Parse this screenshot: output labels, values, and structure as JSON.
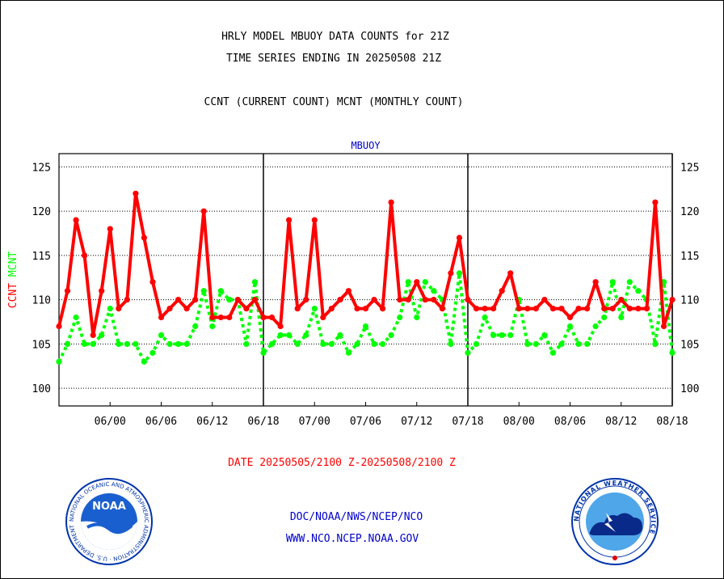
{
  "title_lines": [
    "HRLY MODEL MBUOY DATA COUNTS for 21Z",
    "TIME SERIES ENDING IN 20250508 21Z",
    "CCNT (CURRENT COUNT) MCNT (MONTHLY COUNT)"
  ],
  "date_range": "DATE 20250505/2100 Z-20250508/2100 Z",
  "footer_lines": [
    "DOC/NOAA/NWS/NCEP/NCO",
    "WWW.NCO.NCEP.NOAA.GOV"
  ],
  "logos": {
    "left": {
      "icon": "noaa-logo",
      "text": "NOAA",
      "ring_text": "NATIONAL OCEANIC AND ATMOSPHERIC ADMINISTRATION · U.S. DEPARTMENT OF COMMERCE"
    },
    "right": {
      "icon": "nws-logo",
      "ring_text": "NATIONAL WEATHER SERVICE"
    }
  },
  "colors": {
    "ccnt": "#ff0000",
    "mcnt": "#00ff00",
    "plot_title": "#0000cc",
    "footer": "#0000cc",
    "date": "#ff0000"
  },
  "chart_data": {
    "type": "line",
    "plot_title": "MBUOY",
    "ylabel_parts": [
      {
        "text": "CCNT",
        "color": "#ff0000"
      },
      {
        "text": "MCNT",
        "color": "#00ff00"
      }
    ],
    "ylim": [
      98,
      126.5
    ],
    "yticks": [
      100,
      105,
      110,
      115,
      120,
      125
    ],
    "grid": "horizontal dotted",
    "x_tick_labels": [
      "06/00",
      "06/06",
      "06/12",
      "06/18",
      "07/00",
      "07/06",
      "07/12",
      "07/18",
      "08/00",
      "08/06",
      "08/12",
      "08/18"
    ],
    "x_tick_hours": [
      27,
      33,
      39,
      45,
      51,
      57,
      63,
      69,
      75,
      81,
      87,
      93
    ],
    "x_range_hours": [
      21,
      93
    ],
    "day_boundaries_hours": [
      45,
      69,
      93
    ],
    "x_start": "20250505 21Z",
    "series": [
      {
        "name": "CCNT",
        "color": "#ff0000",
        "style": "solid",
        "values": [
          107,
          111,
          119,
          115,
          106,
          111,
          118,
          109,
          110,
          122,
          117,
          112,
          108,
          109,
          110,
          109,
          110,
          120,
          108,
          108,
          108,
          110,
          109,
          110,
          108,
          108,
          107,
          119,
          109,
          110,
          119,
          108,
          109,
          110,
          111,
          109,
          109,
          110,
          109,
          121,
          110,
          110,
          112,
          110,
          110,
          109,
          113,
          117,
          110,
          109,
          109,
          109,
          111,
          113,
          109,
          109,
          109,
          110,
          109,
          109,
          108,
          109,
          109,
          112,
          109,
          109,
          110,
          109,
          109,
          109,
          121,
          107,
          110
        ]
      },
      {
        "name": "MCNT",
        "color": "#00ff00",
        "style": "dotted",
        "values": [
          103,
          105,
          108,
          105,
          105,
          106,
          109,
          105,
          105,
          105,
          103,
          104,
          106,
          105,
          105,
          105,
          107,
          111,
          107,
          111,
          110,
          110,
          105,
          112,
          104,
          105,
          106,
          106,
          105,
          106,
          109,
          105,
          105,
          106,
          104,
          105,
          107,
          105,
          105,
          106,
          108,
          112,
          108,
          112,
          111,
          110,
          105,
          113,
          104,
          105,
          108,
          106,
          106,
          106,
          110,
          105,
          105,
          106,
          104,
          105,
          107,
          105,
          105,
          107,
          108,
          112,
          108,
          112,
          111,
          110,
          105,
          112,
          104
        ]
      }
    ]
  }
}
